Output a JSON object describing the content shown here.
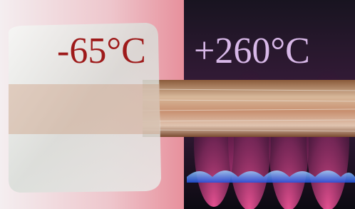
{
  "labels": {
    "cold": "-65°C",
    "hot": "+260°C"
  }
}
